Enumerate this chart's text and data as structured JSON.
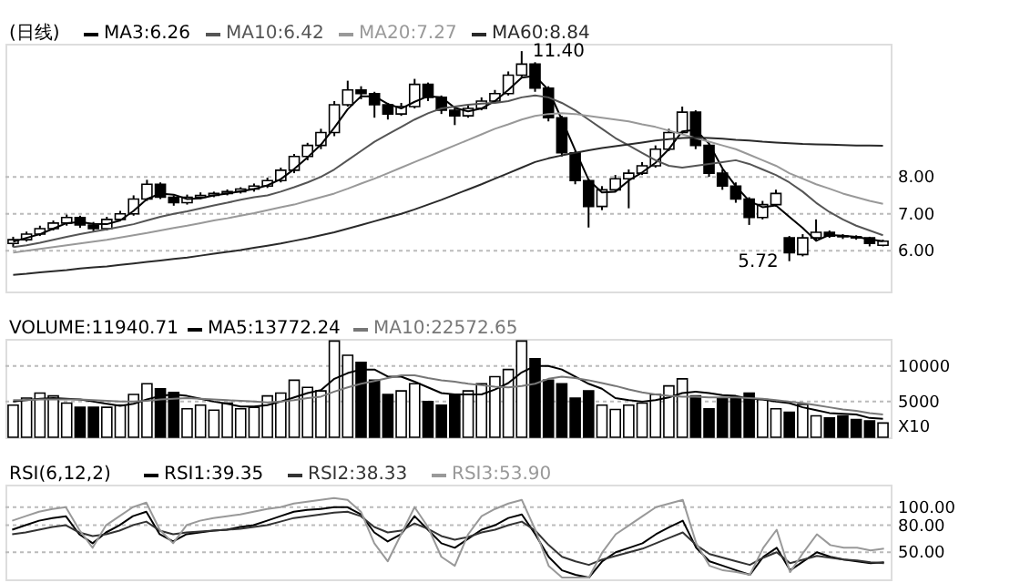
{
  "chart_data": [
    {
      "type": "candlestick",
      "title": "(日线)",
      "color": "#000000",
      "categories": [
        null,
        null,
        null,
        null,
        null,
        null,
        null,
        null,
        null,
        null,
        null,
        null,
        null,
        null,
        null,
        null,
        null,
        null,
        null,
        null,
        null,
        null,
        null,
        null,
        null,
        null,
        null,
        null,
        null,
        null,
        null,
        null,
        null,
        null,
        null,
        null,
        null,
        null,
        null,
        null,
        null,
        null,
        null,
        null,
        null,
        null,
        null,
        null,
        null,
        null,
        null,
        null,
        null,
        null,
        null,
        null,
        null,
        null,
        null,
        null,
        null,
        null,
        null,
        null,
        null,
        null
      ],
      "ohlc": [
        [
          6.2,
          6.38,
          6.1,
          6.3
        ],
        [
          6.3,
          6.52,
          6.25,
          6.45
        ],
        [
          6.45,
          6.68,
          6.4,
          6.6
        ],
        [
          6.6,
          6.82,
          6.55,
          6.75
        ],
        [
          6.75,
          6.98,
          6.68,
          6.9
        ],
        [
          6.9,
          6.95,
          6.62,
          6.7
        ],
        [
          6.7,
          6.78,
          6.5,
          6.6
        ],
        [
          6.6,
          6.92,
          6.55,
          6.85
        ],
        [
          6.85,
          7.08,
          6.8,
          7.0
        ],
        [
          7.0,
          7.5,
          6.95,
          7.4
        ],
        [
          7.4,
          7.92,
          7.35,
          7.8
        ],
        [
          7.8,
          7.85,
          7.4,
          7.45
        ],
        [
          7.45,
          7.5,
          7.22,
          7.3
        ],
        [
          7.3,
          7.52,
          7.25,
          7.45
        ],
        [
          7.45,
          7.58,
          7.4,
          7.5
        ],
        [
          7.5,
          7.6,
          7.45,
          7.55
        ],
        [
          7.55,
          7.66,
          7.5,
          7.6
        ],
        [
          7.6,
          7.72,
          7.55,
          7.67
        ],
        [
          7.67,
          7.82,
          7.6,
          7.75
        ],
        [
          7.75,
          7.98,
          7.7,
          7.9
        ],
        [
          7.9,
          8.25,
          7.85,
          8.18
        ],
        [
          8.18,
          8.62,
          8.1,
          8.55
        ],
        [
          8.55,
          8.92,
          8.45,
          8.85
        ],
        [
          8.85,
          9.3,
          8.75,
          9.2
        ],
        [
          9.2,
          10.05,
          9.1,
          9.95
        ],
        [
          9.95,
          10.6,
          9.9,
          10.35
        ],
        [
          10.35,
          10.45,
          10.1,
          10.25
        ],
        [
          10.25,
          10.3,
          9.6,
          9.95
        ],
        [
          9.95,
          10.0,
          9.55,
          9.7
        ],
        [
          9.7,
          10.0,
          9.65,
          9.9
        ],
        [
          9.9,
          10.65,
          9.85,
          10.5
        ],
        [
          10.5,
          10.55,
          10.05,
          10.15
        ],
        [
          10.15,
          10.2,
          9.7,
          9.8
        ],
        [
          9.8,
          9.85,
          9.4,
          9.65
        ],
        [
          9.65,
          9.95,
          9.6,
          9.85
        ],
        [
          9.85,
          10.15,
          9.8,
          10.05
        ],
        [
          10.05,
          10.35,
          10.0,
          10.25
        ],
        [
          10.25,
          10.85,
          10.2,
          10.75
        ],
        [
          10.75,
          11.4,
          10.7,
          11.05
        ],
        [
          11.05,
          11.1,
          10.3,
          10.4
        ],
        [
          10.4,
          10.45,
          9.5,
          9.6
        ],
        [
          9.6,
          9.65,
          8.55,
          8.65
        ],
        [
          8.65,
          8.7,
          7.8,
          7.9
        ],
        [
          7.9,
          7.95,
          6.63,
          7.2
        ],
        [
          7.2,
          7.75,
          7.1,
          7.65
        ],
        [
          7.65,
          8.05,
          7.6,
          7.95
        ],
        [
          7.95,
          8.2,
          7.15,
          8.1
        ],
        [
          8.1,
          8.4,
          8.05,
          8.3
        ],
        [
          8.3,
          8.85,
          8.25,
          8.75
        ],
        [
          8.75,
          9.3,
          8.7,
          9.2
        ],
        [
          9.2,
          9.9,
          9.15,
          9.75
        ],
        [
          9.75,
          9.8,
          8.75,
          8.85
        ],
        [
          8.85,
          8.9,
          8.0,
          8.1
        ],
        [
          8.1,
          8.2,
          7.65,
          7.75
        ],
        [
          7.75,
          7.85,
          7.3,
          7.4
        ],
        [
          7.4,
          7.45,
          6.7,
          6.9
        ],
        [
          6.9,
          7.35,
          6.85,
          7.25
        ],
        [
          7.25,
          7.65,
          7.2,
          7.55
        ],
        [
          6.35,
          6.4,
          5.72,
          5.95
        ],
        [
          5.9,
          6.45,
          5.85,
          6.35
        ],
        [
          6.35,
          6.85,
          6.3,
          6.5
        ],
        [
          6.5,
          6.55,
          6.35,
          6.4
        ],
        [
          6.4,
          6.45,
          6.32,
          6.38
        ],
        [
          6.38,
          6.42,
          6.3,
          6.35
        ],
        [
          6.35,
          6.38,
          6.12,
          6.2
        ],
        [
          6.15,
          6.3,
          6.12,
          6.26
        ]
      ],
      "series": [
        {
          "name": "MA3:6.26",
          "type": "line",
          "color": "#000000",
          "values": [
            6.25,
            6.35,
            6.45,
            6.6,
            6.75,
            6.78,
            6.73,
            6.72,
            6.82,
            7.08,
            7.4,
            7.55,
            7.52,
            7.4,
            7.42,
            7.5,
            7.55,
            7.61,
            7.67,
            7.77,
            7.94,
            8.21,
            8.53,
            8.87,
            9.33,
            9.83,
            10.18,
            10.18,
            9.97,
            9.85,
            10.03,
            10.18,
            10.15,
            9.87,
            9.77,
            9.85,
            10.05,
            10.35,
            10.68,
            10.73,
            10.35,
            9.55,
            8.72,
            7.92,
            7.58,
            7.6,
            7.9,
            8.12,
            8.38,
            8.75,
            9.23,
            9.27,
            8.9,
            8.23,
            7.75,
            7.35,
            7.18,
            7.23,
            6.92,
            6.62,
            6.27,
            6.43,
            6.41,
            6.38,
            6.31,
            6.26
          ]
        },
        {
          "name": "MA10:6.42",
          "type": "line",
          "color": "#555555",
          "values": [
            6.1,
            6.15,
            6.22,
            6.3,
            6.38,
            6.45,
            6.52,
            6.58,
            6.65,
            6.72,
            6.82,
            6.92,
            7.0,
            7.07,
            7.15,
            7.23,
            7.3,
            7.38,
            7.45,
            7.5,
            7.6,
            7.72,
            7.85,
            8.0,
            8.2,
            8.45,
            8.7,
            8.95,
            9.15,
            9.35,
            9.55,
            9.72,
            9.85,
            9.9,
            9.95,
            9.98,
            10.0,
            10.05,
            10.15,
            10.2,
            10.15,
            10.0,
            9.8,
            9.55,
            9.3,
            9.05,
            8.85,
            8.65,
            8.45,
            8.3,
            8.25,
            8.3,
            8.35,
            8.4,
            8.45,
            8.35,
            8.2,
            8.05,
            7.85,
            7.6,
            7.3,
            7.05,
            6.85,
            6.68,
            6.55,
            6.42
          ]
        },
        {
          "name": "MA20:7.27",
          "type": "line",
          "color": "#999999",
          "values": [
            5.95,
            6.0,
            6.05,
            6.1,
            6.15,
            6.2,
            6.25,
            6.3,
            6.36,
            6.42,
            6.48,
            6.55,
            6.62,
            6.68,
            6.75,
            6.82,
            6.88,
            6.95,
            7.02,
            7.1,
            7.18,
            7.25,
            7.35,
            7.45,
            7.55,
            7.68,
            7.82,
            7.95,
            8.1,
            8.25,
            8.4,
            8.55,
            8.7,
            8.85,
            9.0,
            9.15,
            9.3,
            9.42,
            9.55,
            9.65,
            9.7,
            9.72,
            9.7,
            9.65,
            9.6,
            9.55,
            9.5,
            9.42,
            9.35,
            9.25,
            9.15,
            9.05,
            8.95,
            8.85,
            8.75,
            8.6,
            8.45,
            8.3,
            8.1,
            7.95,
            7.8,
            7.68,
            7.55,
            7.45,
            7.35,
            7.27
          ]
        },
        {
          "name": "MA60:8.84",
          "type": "line",
          "color": "#2a2a2a",
          "values": [
            5.35,
            5.38,
            5.42,
            5.45,
            5.48,
            5.52,
            5.55,
            5.58,
            5.62,
            5.66,
            5.7,
            5.74,
            5.78,
            5.82,
            5.87,
            5.92,
            5.97,
            6.02,
            6.08,
            6.14,
            6.2,
            6.27,
            6.34,
            6.42,
            6.5,
            6.6,
            6.7,
            6.8,
            6.9,
            7.0,
            7.12,
            7.25,
            7.38,
            7.52,
            7.66,
            7.8,
            7.95,
            8.1,
            8.25,
            8.4,
            8.5,
            8.58,
            8.65,
            8.72,
            8.78,
            8.83,
            8.88,
            8.93,
            8.98,
            9.02,
            9.05,
            9.06,
            9.05,
            9.03,
            9.0,
            8.98,
            8.95,
            8.93,
            8.91,
            8.89,
            8.88,
            8.87,
            8.86,
            8.85,
            8.85,
            8.84
          ]
        }
      ],
      "ylim": [
        4.9,
        11.6
      ],
      "yticks": [
        {
          "value": 6,
          "label": "6.00"
        },
        {
          "value": 7,
          "label": "7.00"
        },
        {
          "value": 8,
          "label": "8.00"
        }
      ],
      "annotations": [
        "11.40",
        "5.72"
      ],
      "grid": "y",
      "legend": "top left",
      "tick_labels": "y"
    },
    {
      "type": "bar",
      "title": "VOLUME:11940.71",
      "categories": [
        null,
        null,
        null,
        null,
        null,
        null,
        null,
        null,
        null,
        null,
        null,
        null,
        null,
        null,
        null,
        null,
        null,
        null,
        null,
        null,
        null,
        null,
        null,
        null,
        null,
        null,
        null,
        null,
        null,
        null,
        null,
        null,
        null,
        null,
        null,
        null,
        null,
        null,
        null,
        null,
        null,
        null,
        null,
        null,
        null,
        null,
        null,
        null,
        null,
        null,
        null,
        null,
        null,
        null,
        null,
        null,
        null,
        null,
        null,
        null,
        null,
        null,
        null,
        null,
        null,
        null
      ],
      "values": [
        4500,
        5500,
        6200,
        5800,
        4800,
        4200,
        4200,
        4200,
        4500,
        6000,
        7500,
        6800,
        6300,
        4000,
        4500,
        3800,
        4800,
        4000,
        4200,
        5800,
        6200,
        8000,
        7000,
        6500,
        13500,
        11500,
        10500,
        8000,
        6000,
        6500,
        7500,
        5000,
        4500,
        6000,
        6500,
        7500,
        8500,
        9500,
        13500,
        11000,
        8000,
        7500,
        5500,
        6500,
        4500,
        3900,
        4500,
        4800,
        6000,
        7200,
        8200,
        5800,
        4000,
        5500,
        5600,
        6200,
        5300,
        4000,
        3500,
        4600,
        3000,
        2700,
        3000,
        2500,
        2300,
        2000
      ],
      "colors": [
        "#ffffff",
        "#ffffff",
        "#ffffff",
        "#ffffff",
        "#ffffff",
        "#000000",
        "#000000",
        "#ffffff",
        "#ffffff",
        "#ffffff",
        "#ffffff",
        "#000000",
        "#000000",
        "#ffffff",
        "#ffffff",
        "#ffffff",
        "#ffffff",
        "#ffffff",
        "#ffffff",
        "#ffffff",
        "#ffffff",
        "#ffffff",
        "#ffffff",
        "#ffffff",
        "#ffffff",
        "#ffffff",
        "#000000",
        "#000000",
        "#000000",
        "#ffffff",
        "#ffffff",
        "#000000",
        "#000000",
        "#000000",
        "#ffffff",
        "#ffffff",
        "#ffffff",
        "#ffffff",
        "#ffffff",
        "#000000",
        "#000000",
        "#000000",
        "#000000",
        "#000000",
        "#ffffff",
        "#ffffff",
        "#ffffff",
        "#ffffff",
        "#ffffff",
        "#ffffff",
        "#ffffff",
        "#000000",
        "#000000",
        "#000000",
        "#000000",
        "#000000",
        "#ffffff",
        "#ffffff",
        "#000000",
        "#ffffff",
        "#ffffff",
        "#000000",
        "#000000",
        "#000000",
        "#000000",
        "#ffffff"
      ],
      "series": [
        {
          "name": "MA5:13772.24",
          "type": "line",
          "color": "#000000",
          "values": [
            5000,
            5200,
            5400,
            5500,
            5400,
            5300,
            5000,
            4700,
            4400,
            4700,
            5300,
            5800,
            6000,
            5800,
            5400,
            5000,
            4700,
            4300,
            4300,
            4500,
            5000,
            5600,
            6200,
            6600,
            8200,
            9000,
            9500,
            9500,
            8500,
            8500,
            7800,
            7000,
            6200,
            6000,
            6000,
            6000,
            6700,
            7600,
            9100,
            10000,
            10000,
            9500,
            8500,
            7500,
            6800,
            5500,
            5200,
            5000,
            5200,
            5600,
            6200,
            6400,
            6200,
            5900,
            5800,
            5400,
            5300,
            5000,
            4800,
            4200,
            3800,
            3400,
            3300,
            3200,
            2700,
            2600
          ]
        },
        {
          "name": "MA10:22572.65",
          "type": "line",
          "color": "#777777",
          "values": [
            5200,
            5200,
            5300,
            5300,
            5300,
            5300,
            5200,
            5100,
            5000,
            5000,
            5100,
            5300,
            5400,
            5500,
            5400,
            5300,
            5200,
            5100,
            5000,
            4900,
            5000,
            5200,
            5500,
            5700,
            6400,
            7000,
            7500,
            7900,
            8300,
            8700,
            8700,
            8300,
            8000,
            7800,
            7500,
            7300,
            7100,
            7000,
            7200,
            7500,
            8200,
            8500,
            8300,
            8000,
            7600,
            7200,
            6700,
            6300,
            6000,
            5800,
            5700,
            5700,
            5600,
            5600,
            5600,
            5500,
            5400,
            5200,
            5000,
            4800,
            4500,
            4200,
            3900,
            3700,
            3400,
            3200
          ]
        }
      ],
      "ylim": [
        0,
        13800
      ],
      "yticks": [
        5000,
        10000
      ],
      "annotations": [
        "X10"
      ],
      "grid": "y",
      "legend": "top left",
      "tick_labels": "y"
    },
    {
      "type": "line",
      "title": "RSI(6,12,2)",
      "categories": [
        null,
        null,
        null,
        null,
        null,
        null,
        null,
        null,
        null,
        null,
        null,
        null,
        null,
        null,
        null,
        null,
        null,
        null,
        null,
        null,
        null,
        null,
        null,
        null,
        null,
        null,
        null,
        null,
        null,
        null,
        null,
        null,
        null,
        null,
        null,
        null,
        null,
        null,
        null,
        null,
        null,
        null,
        null,
        null,
        null,
        null,
        null,
        null,
        null,
        null,
        null,
        null,
        null,
        null,
        null,
        null,
        null,
        null,
        null,
        null,
        null,
        null,
        null,
        null,
        null,
        null
      ],
      "series": [
        {
          "name": "RSI1:39.35",
          "color": "#000000",
          "values": [
            75,
            80,
            85,
            88,
            90,
            70,
            60,
            72,
            80,
            90,
            95,
            70,
            62,
            70,
            72,
            74,
            75,
            78,
            80,
            85,
            90,
            95,
            97,
            98,
            100,
            100,
            92,
            72,
            62,
            70,
            90,
            75,
            60,
            55,
            65,
            75,
            80,
            88,
            92,
            70,
            45,
            30,
            25,
            22,
            40,
            50,
            55,
            60,
            70,
            78,
            85,
            55,
            40,
            35,
            30,
            25,
            45,
            55,
            30,
            40,
            50,
            45,
            42,
            40,
            38,
            39
          ]
        },
        {
          "name": "RSI2:38.33",
          "color": "#333333",
          "values": [
            70,
            72,
            75,
            78,
            80,
            72,
            68,
            70,
            74,
            80,
            84,
            74,
            70,
            72,
            73,
            74,
            75,
            76,
            78,
            80,
            84,
            88,
            90,
            92,
            94,
            95,
            90,
            78,
            72,
            74,
            82,
            76,
            68,
            64,
            67,
            72,
            75,
            80,
            84,
            74,
            58,
            45,
            40,
            36,
            42,
            46,
            50,
            54,
            60,
            66,
            72,
            58,
            48,
            44,
            40,
            36,
            44,
            50,
            38,
            42,
            46,
            44,
            42,
            41,
            39,
            38
          ]
        },
        {
          "name": "RSI3:53.90",
          "color": "#999999",
          "values": [
            85,
            90,
            95,
            98,
            100,
            75,
            55,
            80,
            90,
            100,
            105,
            75,
            60,
            80,
            85,
            88,
            90,
            92,
            95,
            98,
            100,
            104,
            106,
            108,
            110,
            108,
            95,
            60,
            40,
            70,
            100,
            78,
            45,
            35,
            70,
            90,
            98,
            104,
            108,
            75,
            35,
            22,
            22,
            22,
            50,
            70,
            80,
            90,
            100,
            104,
            108,
            60,
            35,
            30,
            28,
            25,
            55,
            75,
            28,
            50,
            70,
            58,
            55,
            55,
            52,
            54
          ]
        }
      ],
      "ylim": [
        20,
        125
      ],
      "yticks": [
        {
          "value": 50,
          "label": "50.00"
        },
        {
          "value": 80,
          "label": "80.00"
        },
        {
          "value": 100,
          "label": "100.00"
        }
      ],
      "grid": "y",
      "legend": "top left",
      "tick_labels": "y"
    }
  ]
}
